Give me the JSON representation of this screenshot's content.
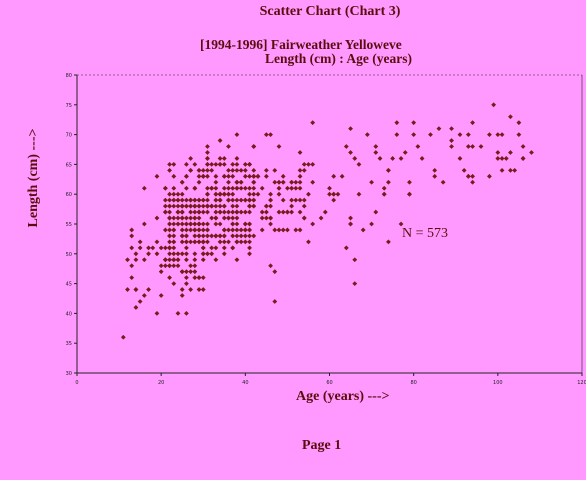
{
  "header": {
    "title": "Scatter Chart (Chart 3)",
    "subtitle_line1": "[1994-1996] Fairweather Yelloweve",
    "subtitle_line2": "Length (cm) : Age (years)"
  },
  "footer": {
    "page_label": "Page 1"
  },
  "colors": {
    "background": "#ff99ff",
    "marker": "#7a1a1a",
    "text": "#5a0d0d",
    "axis": "#222222"
  },
  "chart_data": {
    "type": "scatter",
    "xlabel": "Age (years) --->",
    "ylabel": "Length (cm) --->",
    "xlim": [
      0,
      120
    ],
    "ylim": [
      30,
      80
    ],
    "xticks": [
      "0",
      "20",
      "40",
      "60",
      "80",
      "100",
      "120"
    ],
    "yticks": [
      "30",
      "35",
      "40",
      "45",
      "50",
      "55",
      "60",
      "65",
      "70",
      "75",
      "80"
    ],
    "grid": false,
    "annotation": "N = 573",
    "clusters": [
      {
        "x": [
          12,
          21
        ],
        "y": [
          38,
          62
        ],
        "n": 28
      },
      {
        "x": [
          21,
          30
        ],
        "y": [
          43,
          66
        ],
        "n": 200
      },
      {
        "x": [
          30,
          42
        ],
        "y": [
          48,
          69
        ],
        "n": 210
      },
      {
        "x": [
          42,
          55
        ],
        "y": [
          52,
          69
        ],
        "n": 70
      },
      {
        "x": [
          55,
          80
        ],
        "y": [
          50,
          72
        ],
        "n": 40
      },
      {
        "x": [
          80,
          108
        ],
        "y": [
          60,
          75
        ],
        "n": 25
      }
    ],
    "points": [
      {
        "x": 11,
        "y": 36
      },
      {
        "x": 14,
        "y": 41
      },
      {
        "x": 17,
        "y": 44
      },
      {
        "x": 19,
        "y": 40
      },
      {
        "x": 19,
        "y": 56
      },
      {
        "x": 19,
        "y": 63
      },
      {
        "x": 26,
        "y": 40
      },
      {
        "x": 24,
        "y": 40
      },
      {
        "x": 27,
        "y": 66
      },
      {
        "x": 31,
        "y": 64
      },
      {
        "x": 35,
        "y": 66
      },
      {
        "x": 38,
        "y": 70
      },
      {
        "x": 42,
        "y": 68
      },
      {
        "x": 45,
        "y": 70
      },
      {
        "x": 46,
        "y": 70
      },
      {
        "x": 47,
        "y": 42
      },
      {
        "x": 46,
        "y": 48
      },
      {
        "x": 47,
        "y": 47
      },
      {
        "x": 55,
        "y": 52
      },
      {
        "x": 61,
        "y": 60
      },
      {
        "x": 64,
        "y": 51
      },
      {
        "x": 65,
        "y": 71
      },
      {
        "x": 66,
        "y": 49
      },
      {
        "x": 66,
        "y": 45
      },
      {
        "x": 69,
        "y": 70
      },
      {
        "x": 70,
        "y": 62
      },
      {
        "x": 72,
        "y": 66
      },
      {
        "x": 74,
        "y": 52
      },
      {
        "x": 76,
        "y": 72
      },
      {
        "x": 76,
        "y": 70
      },
      {
        "x": 78,
        "y": 67
      },
      {
        "x": 80,
        "y": 72
      },
      {
        "x": 81,
        "y": 68
      },
      {
        "x": 82,
        "y": 66
      },
      {
        "x": 84,
        "y": 70
      },
      {
        "x": 86,
        "y": 71
      },
      {
        "x": 87,
        "y": 62
      },
      {
        "x": 89,
        "y": 68
      },
      {
        "x": 91,
        "y": 70
      },
      {
        "x": 92,
        "y": 64
      },
      {
        "x": 94,
        "y": 62
      },
      {
        "x": 96,
        "y": 68
      },
      {
        "x": 99,
        "y": 75
      },
      {
        "x": 100,
        "y": 70
      },
      {
        "x": 102,
        "y": 66
      },
      {
        "x": 104,
        "y": 64
      },
      {
        "x": 106,
        "y": 66
      },
      {
        "x": 108,
        "y": 67
      },
      {
        "x": 103,
        "y": 64
      }
    ]
  }
}
